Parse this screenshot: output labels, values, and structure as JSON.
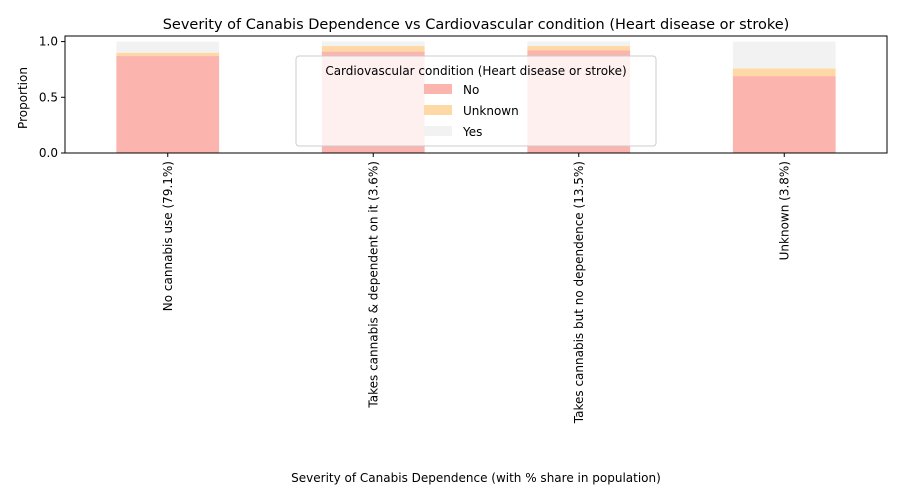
{
  "chart_data": {
    "type": "bar",
    "stacked": true,
    "title": "Severity of Canabis Dependence vs Cardiovascular condition (Heart disease or stroke)",
    "xlabel": "Severity of Canabis Dependence (with % share in population)",
    "ylabel": "Proportion",
    "ylim": [
      0,
      1.05
    ],
    "yticks": [
      "0.0",
      "0.5",
      "1.0"
    ],
    "ytick_values": [
      0.0,
      0.5,
      1.0
    ],
    "categories": [
      "No cannabis use (79.1%)",
      "Takes cannabis & dependent on it (3.6%)",
      "Takes cannabis but no dependence (13.5%)",
      "Unknown (3.8%)"
    ],
    "series": [
      {
        "name": "No",
        "color": "#fbb4ae",
        "values": [
          0.87,
          0.91,
          0.92,
          0.69
        ]
      },
      {
        "name": "Unknown",
        "color": "#fed9a6",
        "values": [
          0.03,
          0.05,
          0.04,
          0.07
        ]
      },
      {
        "name": "Yes",
        "color": "#f2f2f2",
        "values": [
          0.1,
          0.04,
          0.04,
          0.24
        ]
      }
    ],
    "legend": {
      "title": "Cardiovascular condition (Heart disease or stroke)",
      "placement": "top-center"
    },
    "grid": false
  }
}
